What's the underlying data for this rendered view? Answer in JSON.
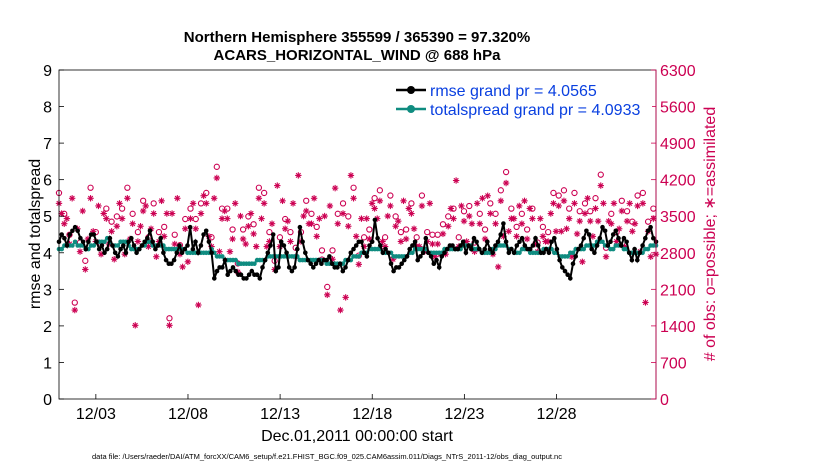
{
  "chart_data": {
    "type": "line",
    "title_line1": "Northern Hemisphere 355599 / 365390 = 97.320%",
    "title_line2": "ACARS_HORIZONTAL_WIND @ 688 hPa",
    "xlabel": "Dec.01,2011 00:00:00 start",
    "ylabel_left": "rmse and totalspread",
    "ylabel_right": "# of obs: o=possible; ∗=assimilated",
    "xlim": [
      1,
      33.4
    ],
    "ylim_left": [
      0,
      9
    ],
    "ylim_right": [
      0,
      6300
    ],
    "x_ticks": [
      {
        "label": "12/03",
        "x": 3
      },
      {
        "label": "12/08",
        "x": 8
      },
      {
        "label": "12/13",
        "x": 13
      },
      {
        "label": "12/18",
        "x": 18
      },
      {
        "label": "12/23",
        "x": 23
      },
      {
        "label": "12/28",
        "x": 28
      }
    ],
    "y_ticks_left": [
      "0",
      "1",
      "2",
      "3",
      "4",
      "5",
      "6",
      "7",
      "8",
      "9"
    ],
    "y_ticks_right": [
      "0",
      "700",
      "1400",
      "2100",
      "2800",
      "3500",
      "4200",
      "4900",
      "5600",
      "6300"
    ],
    "footer": "data file: /Users/raeder/DAI/ATM_forcXX/CAM6_setup/f.e21.FHIST_BGC.f09_025.CAM6assim.011/Diags_NTrS_2011-12/obs_diag_output.nc",
    "colors": {
      "rmse": "#000000",
      "spread": "#0f8c80",
      "obs": "#cc0052",
      "legend_text": "#0a40e0",
      "right_axis": "#cc0052"
    },
    "legend_position": "top-right",
    "series": [
      {
        "name": "rmse grand pr = 4.0565",
        "key": "rmse",
        "values": [
          4.3,
          4.5,
          4.4,
          4.2,
          4.5,
          4.6,
          4.7,
          4.6,
          4.4,
          4.3,
          4.1,
          4.3,
          4.5,
          4.5,
          4.3,
          4.1,
          4.2,
          4.0,
          4.1,
          4.4,
          4.2,
          4.0,
          3.9,
          4.1,
          4.2,
          4.0,
          4.3,
          4.4,
          4.2,
          4.0,
          4.1,
          4.2,
          4.3,
          4.4,
          4.6,
          4.3,
          4.1,
          4.2,
          4.4,
          4.0,
          3.8,
          3.7,
          3.7,
          3.8,
          4.0,
          4.2,
          4.0,
          4.1,
          4.2,
          4.7,
          4.1,
          4.3,
          4.0,
          4.2,
          4.5,
          4.6,
          4.3,
          4.0,
          3.3,
          3.5,
          3.6,
          3.6,
          3.8,
          3.4,
          3.5,
          3.6,
          3.5,
          3.4,
          3.4,
          3.3,
          3.3,
          3.4,
          3.5,
          3.4,
          3.4,
          3.3,
          3.6,
          3.8,
          4.0,
          4.2,
          4.5,
          3.5,
          3.6,
          4.3,
          4.2,
          4.0,
          3.6,
          3.5,
          3.6,
          4.1,
          4.7,
          4.3,
          4.0,
          3.8,
          3.7,
          3.6,
          3.7,
          3.8,
          3.7,
          3.8,
          3.8,
          3.9,
          3.7,
          3.6,
          3.6,
          3.7,
          3.5,
          3.6,
          3.8,
          4.0,
          4.1,
          4.2,
          4.3,
          4.3,
          4.0,
          3.9,
          4.2,
          4.3,
          4.9,
          4.4,
          4.2,
          4.0,
          4.1,
          4.0,
          3.7,
          3.5,
          3.6,
          3.6,
          3.7,
          3.8,
          3.9,
          4.1,
          4.2,
          4.3,
          3.8,
          3.9,
          4.0,
          4.4,
          4.0,
          3.9,
          3.7,
          3.8,
          3.6,
          3.9,
          4.0,
          4.1,
          4.2,
          4.2,
          4.1,
          4.1,
          4.2,
          4.3,
          4.0,
          4.2,
          4.1,
          4.4,
          4.3,
          4.1,
          4.0,
          4.1,
          4.3,
          4.1,
          4.0,
          4.2,
          4.3,
          4.5,
          4.8,
          4.3,
          4.0,
          4.1,
          4.0,
          4.2,
          4.3,
          4.4,
          4.2,
          4.1,
          4.1,
          4.2,
          4.4,
          4.2,
          4.0,
          4.0,
          4.1,
          4.0,
          4.3,
          4.4,
          4.1,
          3.8,
          3.6,
          3.5,
          3.4,
          3.3,
          3.7,
          3.9,
          4.1,
          4.2,
          4.4,
          4.6,
          4.5,
          4.1,
          4.0,
          4.2,
          4.4,
          4.7,
          4.6,
          4.2,
          4.3,
          4.5,
          4.6,
          4.4,
          4.2,
          4.4,
          4.3,
          4.0,
          3.8,
          4.1,
          3.8,
          4.0,
          4.2,
          4.4,
          4.6,
          4.7,
          4.4,
          4.3
        ]
      },
      {
        "name": "totalspread grand pr = 4.0933",
        "key": "spread",
        "values": [
          4.1,
          4.1,
          4.2,
          4.2,
          4.2,
          4.2,
          4.3,
          4.2,
          4.2,
          4.2,
          4.1,
          4.1,
          4.2,
          4.2,
          4.3,
          4.3,
          4.3,
          4.3,
          4.4,
          4.3,
          4.2,
          4.2,
          4.2,
          4.3,
          4.3,
          4.3,
          4.2,
          4.1,
          4.1,
          4.1,
          4.1,
          4.2,
          4.2,
          4.3,
          4.3,
          4.2,
          4.2,
          4.2,
          4.2,
          4.2,
          4.1,
          4.1,
          4.1,
          4.1,
          4.1,
          4.1,
          4.1,
          4.1,
          4.0,
          4.0,
          4.0,
          4.0,
          4.0,
          4.0,
          4.0,
          4.0,
          4.0,
          4.1,
          4.0,
          3.9,
          3.9,
          3.9,
          3.8,
          3.8,
          3.8,
          3.8,
          3.8,
          3.7,
          3.7,
          3.7,
          3.7,
          3.7,
          3.7,
          3.7,
          3.8,
          3.8,
          3.8,
          3.8,
          3.9,
          3.9,
          3.9,
          3.9,
          3.9,
          3.9,
          3.9,
          3.9,
          3.9,
          3.9,
          3.9,
          3.9,
          3.8,
          3.8,
          3.8,
          3.8,
          3.8,
          3.8,
          3.8,
          3.8,
          3.8,
          3.8,
          3.7,
          3.7,
          3.7,
          3.7,
          3.7,
          3.7,
          3.7,
          3.8,
          3.8,
          3.8,
          3.9,
          3.9,
          3.9,
          4.0,
          4.0,
          4.0,
          4.1,
          4.1,
          4.1,
          4.1,
          4.1,
          4.0,
          4.0,
          4.0,
          4.0,
          3.9,
          3.9,
          3.9,
          3.9,
          3.9,
          3.9,
          4.0,
          4.0,
          4.1,
          4.1,
          4.1,
          4.1,
          4.1,
          4.0,
          4.0,
          4.0,
          4.0,
          4.0,
          4.0,
          4.1,
          4.1,
          4.1,
          4.1,
          4.1,
          4.1,
          4.1,
          4.2,
          4.2,
          4.2,
          4.2,
          4.1,
          4.1,
          4.1,
          4.0,
          4.0,
          4.0,
          4.0,
          4.1,
          4.1,
          4.2,
          4.2,
          4.2,
          4.2,
          4.1,
          4.1,
          4.0,
          4.0,
          4.0,
          4.1,
          4.1,
          4.1,
          4.0,
          4.0,
          4.0,
          4.0,
          4.0,
          4.1,
          4.1,
          4.1,
          4.1,
          4.0,
          4.0,
          3.9,
          3.9,
          3.9,
          3.9,
          4.0,
          4.0,
          4.1,
          4.1,
          4.1,
          4.1,
          4.2,
          4.2,
          4.2,
          4.2,
          4.3,
          4.3,
          4.3,
          4.2,
          4.2,
          4.1,
          4.1,
          4.2,
          4.2,
          4.2,
          4.1,
          4.1,
          4.0,
          4.0,
          4.0,
          4.0,
          4.0,
          4.0,
          4.1,
          4.1,
          4.2,
          4.2,
          4.2
        ]
      }
    ],
    "obs_possible": [
      3850,
      3650,
      3450,
      3550,
      3050,
      3950,
      1750,
      3350,
      2900,
      3700,
      2550,
      3150,
      3950,
      3300,
      3100,
      3800,
      2850,
      3650,
      3550,
      3050,
      3300,
      2750,
      3400,
      3850,
      3550,
      2850,
      3950,
      3150,
      3450,
      1450,
      3100,
      3400,
      3700,
      3800,
      3000,
      3350,
      3650,
      2800,
      3100,
      3900,
      3200,
      3650,
      1450,
      3650,
      3050,
      3950,
      2850,
      2600,
      3350,
      2700,
      3550,
      3850,
      3350,
      1850,
      3650,
      4000,
      3850,
      3200,
      3000,
      3950,
      4350,
      2900,
      3550,
      3700,
      3550,
      2900,
      3150,
      3850,
      2500,
      3600,
      3150,
      3050,
      3400,
      3650,
      3250,
      3000,
      3950,
      3550,
      3850,
      3000,
      3100,
      3450,
      2550,
      4200,
      3000,
      3900,
      3350,
      3500,
      3100,
      3850,
      2800,
      4400,
      3100,
      3600,
      3700,
      3450,
      3450,
      3950,
      3200,
      3550,
      2750,
      3600,
      2050,
      3800,
      2750,
      4150,
      3450,
      1750,
      3650,
      2000,
      3400,
      4400,
      3950,
      3200,
      2650,
      3550,
      3000,
      3550,
      3150,
      3850,
      3750,
      3550,
      3900,
      3100,
      3000,
      3600,
      3800,
      2750,
      3400,
      3500,
      3100,
      3900,
      3150,
      3750,
      3650,
      3350,
      3000,
      3000,
      3800,
      2900,
      3100,
      3850,
      3050,
      2800,
      3050,
      2850,
      3250,
      2850,
      3400,
      3750,
      3550,
      4300,
      3000,
      3800,
      3500,
      3100,
      3600,
      3450,
      2900,
      3850,
      3450,
      3950,
      3150,
      4000,
      3650,
      2850,
      3450,
      2600,
      3900,
      3200,
      4250,
      3300,
      3550,
      3550,
      3200,
      3800,
      3450,
      3900,
      3150,
      3750,
      3550,
      3050,
      2900,
      3550,
      3200,
      3100,
      3100,
      3650,
      3850,
      3300,
      3800,
      3300,
      3900,
      3350,
      3550,
      2800,
      3850,
      3250,
      3500,
      2700,
      3650,
      3950,
      3500,
      3200,
      3750,
      3500,
      4200,
      3850,
      2800,
      3500,
      3450,
      3850,
      3100,
      3350,
      3700,
      3000,
      3500,
      3850,
      3300,
      3450,
      3800,
      2900,
      3850,
      1900,
      3300,
      2800,
      3550,
      2850
    ]
  }
}
